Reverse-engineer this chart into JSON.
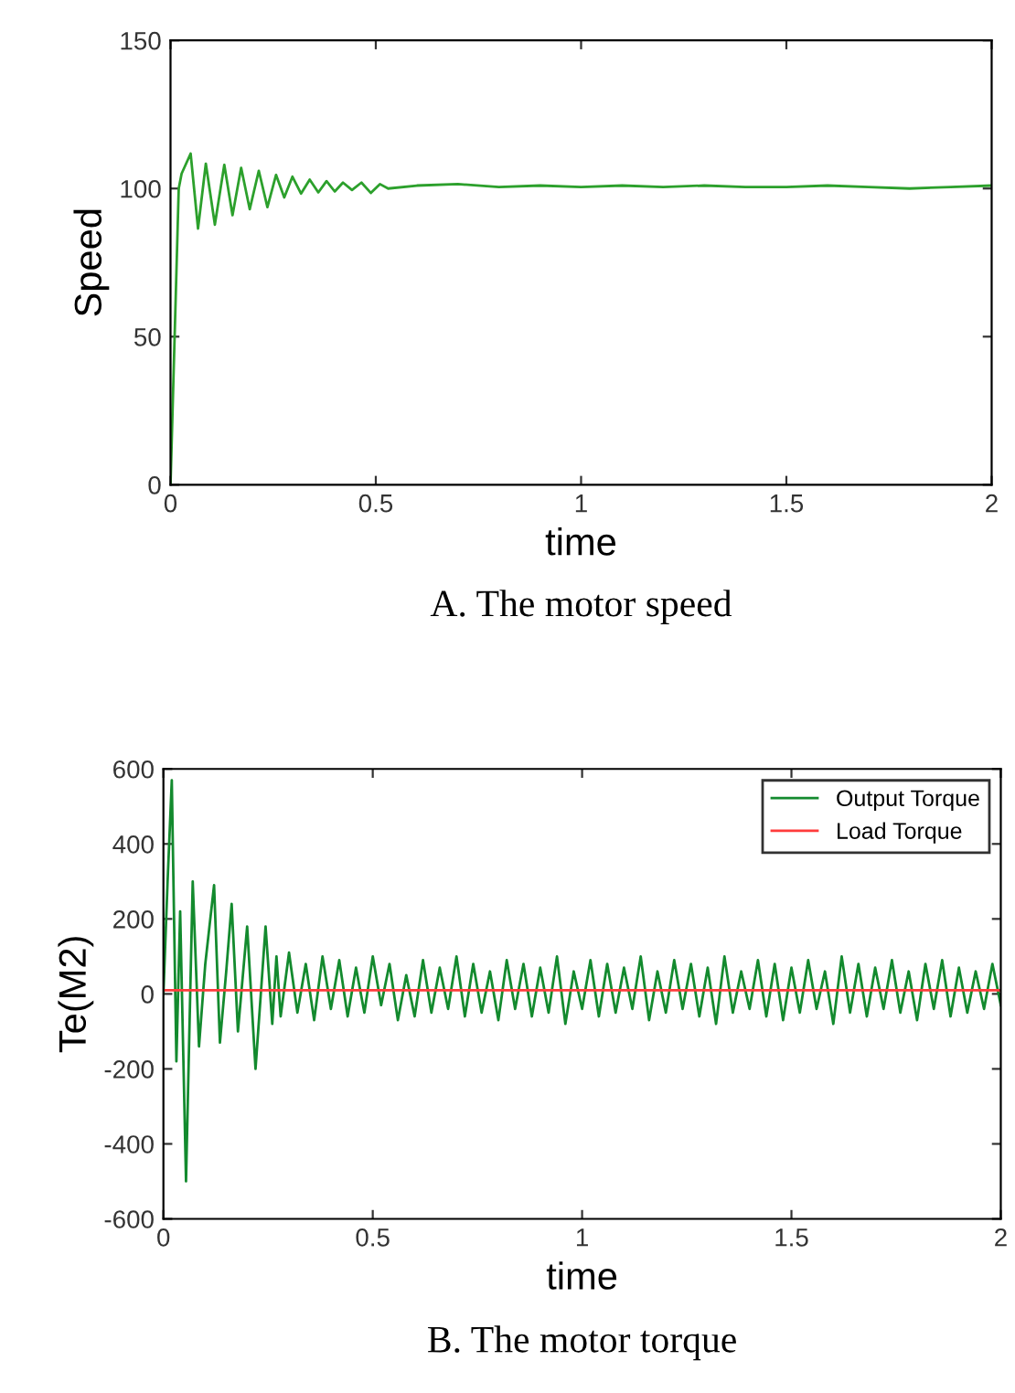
{
  "chart_data": [
    {
      "type": "line",
      "title": "A. The motor speed",
      "xlabel": "time",
      "ylabel": "Speed",
      "xlim": [
        0,
        2
      ],
      "ylim": [
        0,
        150
      ],
      "xticks": [
        0,
        0.5,
        1,
        1.5,
        2
      ],
      "yticks": [
        0,
        50,
        100,
        150
      ],
      "grid": false,
      "legend": false,
      "series": [
        {
          "color": "#2ca02c",
          "x": [
            0,
            0.02,
            0.027,
            0.049,
            0.067,
            0.086,
            0.108,
            0.131,
            0.151,
            0.172,
            0.193,
            0.215,
            0.236,
            0.257,
            0.277,
            0.297,
            0.318,
            0.339,
            0.36,
            0.38,
            0.4,
            0.42,
            0.442,
            0.465,
            0.488,
            0.51,
            0.53,
            0.6,
            0.7,
            0.8,
            0.9,
            1.0,
            1.1,
            1.2,
            1.3,
            1.4,
            1.5,
            1.6,
            1.7,
            1.8,
            1.9,
            2.0
          ],
          "values": [
            0,
            100,
            105,
            111.8,
            86.5,
            108.4,
            87.8,
            108,
            91,
            107,
            93,
            106,
            93.7,
            104.6,
            97,
            104,
            98.3,
            103,
            98.7,
            102.5,
            99,
            102,
            99.5,
            102,
            98.5,
            101.5,
            100,
            101,
            101.5,
            100.5,
            101,
            100.5,
            101,
            100.5,
            101,
            100.5,
            100.5,
            101,
            100.5,
            100,
            100.5,
            101
          ]
        }
      ]
    },
    {
      "type": "line",
      "title": "B. The motor torque",
      "xlabel": "time",
      "ylabel": "Te(M2)",
      "xlim": [
        0,
        2
      ],
      "ylim": [
        -600,
        600
      ],
      "xticks": [
        0,
        0.5,
        1,
        1.5,
        2
      ],
      "yticks": [
        -600,
        -400,
        -200,
        0,
        200,
        400,
        600
      ],
      "grid": false,
      "legend": "top right",
      "series": [
        {
          "name": "Output Torque",
          "color": "#138a2e",
          "x": [
            0,
            0.01,
            0.02,
            0.031,
            0.04,
            0.054,
            0.07,
            0.085,
            0.1,
            0.121,
            0.135,
            0.15,
            0.163,
            0.178,
            0.2,
            0.22,
            0.244,
            0.26,
            0.27,
            0.28,
            0.3,
            0.32,
            0.34,
            0.36,
            0.38,
            0.4,
            0.42,
            0.44,
            0.46,
            0.48,
            0.5,
            0.52,
            0.54,
            0.56,
            0.58,
            0.6,
            0.62,
            0.64,
            0.66,
            0.68,
            0.7,
            0.72,
            0.74,
            0.76,
            0.78,
            0.8,
            0.82,
            0.84,
            0.86,
            0.88,
            0.9,
            0.92,
            0.94,
            0.96,
            0.98,
            1.0,
            1.02,
            1.04,
            1.06,
            1.08,
            1.1,
            1.12,
            1.14,
            1.16,
            1.18,
            1.2,
            1.22,
            1.24,
            1.26,
            1.28,
            1.3,
            1.32,
            1.34,
            1.36,
            1.38,
            1.4,
            1.42,
            1.44,
            1.46,
            1.48,
            1.5,
            1.52,
            1.54,
            1.56,
            1.58,
            1.6,
            1.62,
            1.64,
            1.66,
            1.68,
            1.7,
            1.72,
            1.74,
            1.76,
            1.78,
            1.8,
            1.82,
            1.84,
            1.86,
            1.88,
            1.9,
            1.92,
            1.94,
            1.96,
            1.98,
            2.0
          ],
          "values": [
            0,
            300,
            570,
            -180,
            220,
            -500,
            300,
            -140,
            80,
            290,
            -130,
            60,
            240,
            -100,
            180,
            -200,
            180,
            -80,
            100,
            -60,
            110,
            -50,
            80,
            -70,
            100,
            -40,
            90,
            -60,
            70,
            -50,
            100,
            -30,
            80,
            -70,
            50,
            -60,
            90,
            -50,
            70,
            -40,
            100,
            -60,
            80,
            -50,
            60,
            -70,
            90,
            -40,
            80,
            -60,
            70,
            -50,
            100,
            -80,
            60,
            -40,
            90,
            -60,
            80,
            -50,
            70,
            -40,
            100,
            -70,
            60,
            -50,
            90,
            -40,
            80,
            -60,
            70,
            -80,
            100,
            -50,
            60,
            -40,
            90,
            -60,
            80,
            -70,
            70,
            -50,
            90,
            -40,
            60,
            -80,
            100,
            -50,
            80,
            -60,
            70,
            -40,
            90,
            -50,
            60,
            -70,
            80,
            -40,
            90,
            -60,
            70,
            -50,
            60,
            -40,
            80,
            -30
          ]
        },
        {
          "name": "Load Torque",
          "color": "#ff3b3b",
          "x": [
            0,
            2
          ],
          "values": [
            10,
            10
          ]
        }
      ]
    }
  ]
}
